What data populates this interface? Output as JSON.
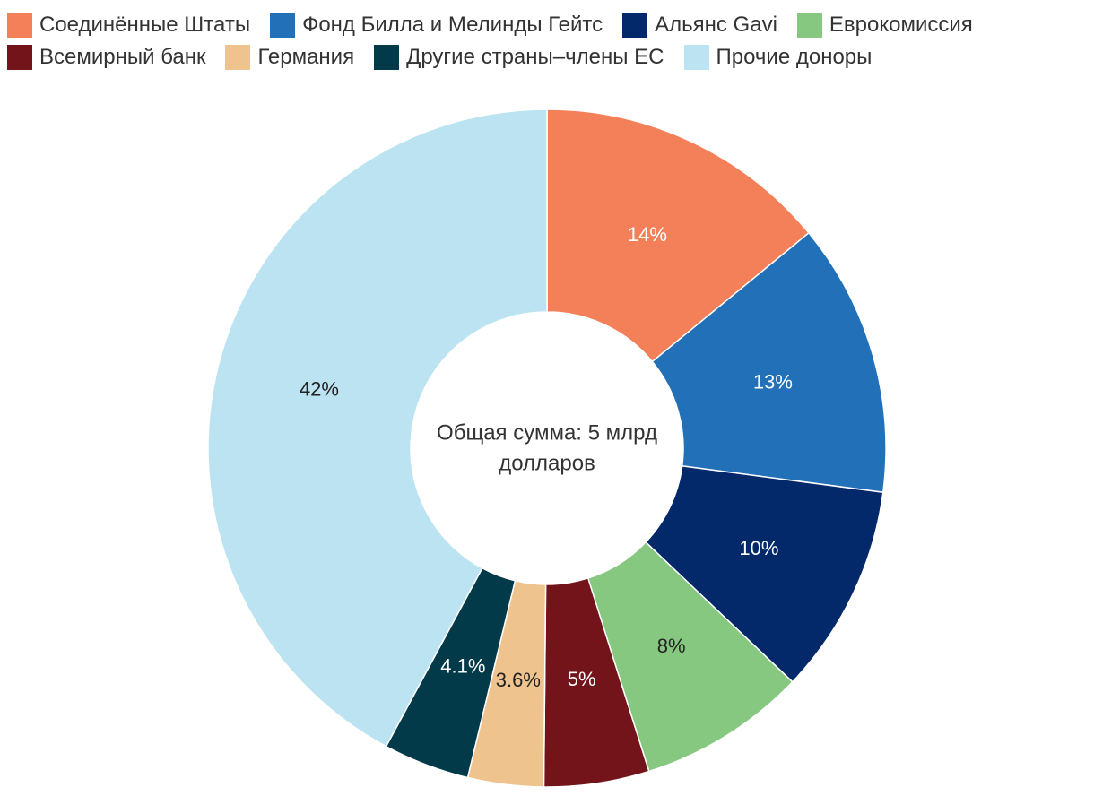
{
  "chart_data": {
    "type": "pie",
    "donut": true,
    "legend_position": "top-left",
    "center_text": [
      "Общая сумма: 5 млрд",
      "долларов"
    ],
    "slices": [
      {
        "label": "Соединённые Штаты",
        "value": 14,
        "display": "14%",
        "color": "#F4805A",
        "label_color": "#ffffff"
      },
      {
        "label": "Фонд Билла и Мелинды Гейтс",
        "value": 13,
        "display": "13%",
        "color": "#2270B8",
        "label_color": "#ffffff"
      },
      {
        "label": "Альянс Gavi",
        "value": 10,
        "display": "10%",
        "color": "#03296A",
        "label_color": "#ffffff"
      },
      {
        "label": "Еврокомиссия",
        "value": 8,
        "display": "8%",
        "color": "#86C880",
        "label_color": "#222222"
      },
      {
        "label": "Всемирный банк",
        "value": 5,
        "display": "5%",
        "color": "#73141B",
        "label_color": "#ffffff"
      },
      {
        "label": "Германия",
        "value": 3.6,
        "display": "3.6%",
        "color": "#EEC38D",
        "label_color": "#222222"
      },
      {
        "label": "Другие страны–члены ЕС",
        "value": 4.1,
        "display": "4.1%",
        "color": "#033A4A",
        "label_color": "#ffffff"
      },
      {
        "label": "Прочие доноры",
        "value": 42,
        "display": "42%",
        "color": "#BCE3F1",
        "label_color": "#222222"
      }
    ],
    "legend_order": [
      [
        "Соединённые Штаты",
        "Фонд Билла и Мелинды Гейтс",
        "Альянс Gavi",
        "Еврокомиссия"
      ],
      [
        "Всемирный банк",
        "Германия",
        "Другие страны–члены ЕС",
        "Прочие доноры"
      ]
    ]
  }
}
